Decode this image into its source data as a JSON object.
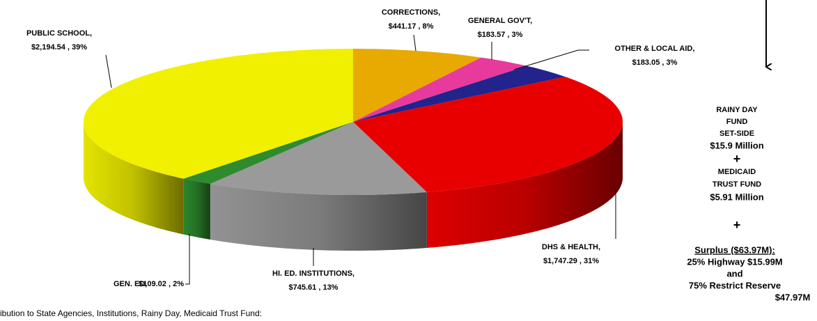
{
  "chart_data": {
    "type": "pie3d",
    "categories": [
      "CORRECTIONS,",
      "GENERAL GOV'T,",
      "OTHER & LOCAL AID,",
      "DHS & HEALTH,",
      "HI. ED. INSTITUTIONS,",
      "GEN. ED,",
      "PUBLIC SCHOOL,"
    ],
    "values": [
      441.17,
      183.57,
      183.05,
      1747.29,
      745.61,
      109.02,
      2194.54
    ],
    "value_labels": [
      "$441.17 , 8%",
      "$183.57 , 3%",
      "$183.05 , 3%",
      "$1,747.29 , 31%",
      "$745.61 , 13%",
      "$109.02 , 2%",
      "$2,194.54 , 39%"
    ],
    "colors": [
      "#e8a900",
      "#e83a9c",
      "#22238c",
      "#e80000",
      "#9a9a9a",
      "#2e8c2e",
      "#f0f000"
    ],
    "side_notes": [
      "RAINY DAY",
      "FUND",
      "SET-SIDE",
      "$15.9 Million",
      "+",
      "MEDICAID",
      "TRUST FUND",
      "$5.91 Million",
      "+",
      "Surplus ($63.97M):",
      "25% Highway $15.99M",
      "and",
      "75% Restrict Reserve",
      "$47.97M"
    ],
    "caption": "ibution to State Agencies, Institutions, Rainy Day, Medicaid Trust Fund:"
  }
}
